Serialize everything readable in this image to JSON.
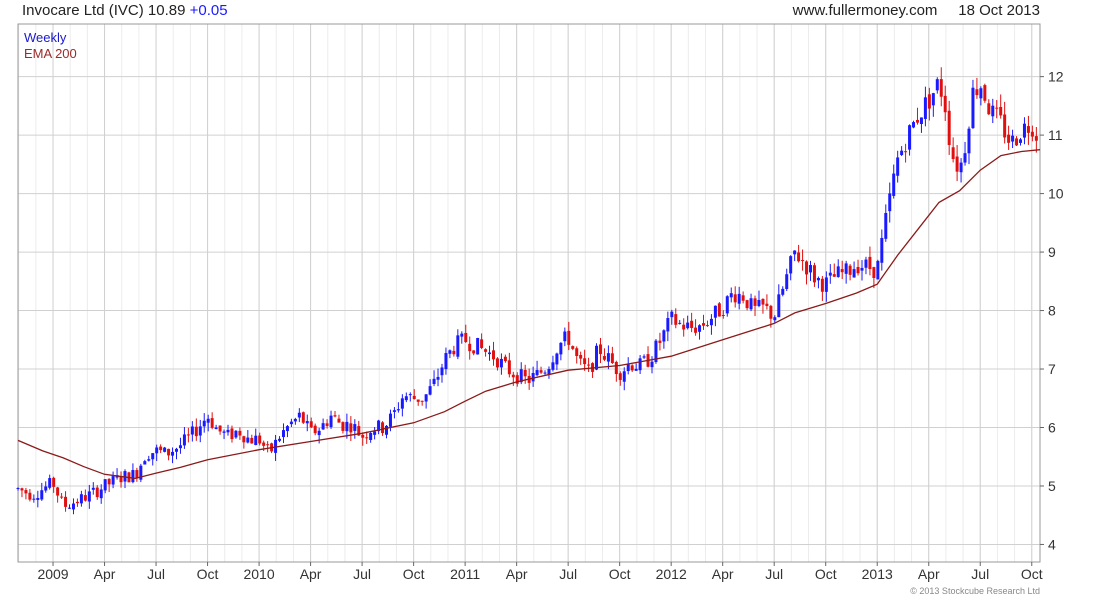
{
  "header": {
    "title": "Invocare Ltd (IVC)",
    "price": "10.89",
    "change": "+0.05",
    "site": "www.fullermoney.com",
    "date": "18 Oct 2013"
  },
  "legend": {
    "weekly": "Weekly",
    "ema": "EMA 200"
  },
  "copyright": "© 2013 Stockcube Research Ltd",
  "colors": {
    "up": "#1a1aff",
    "down": "#e01010",
    "ema": "#8b1a1a",
    "grid": "#d0d0d0"
  },
  "chart_data": {
    "type": "candlestick",
    "y_ticks": [
      4,
      5,
      6,
      7,
      8,
      9,
      10,
      11,
      12
    ],
    "ylim": [
      3.7,
      12.9
    ],
    "x_ticks": [
      {
        "label": "2009",
        "t": 0.0
      },
      {
        "label": "Apr",
        "t": 0.25
      },
      {
        "label": "Jul",
        "t": 0.5
      },
      {
        "label": "Oct",
        "t": 0.75
      },
      {
        "label": "2010",
        "t": 1.0
      },
      {
        "label": "Apr",
        "t": 1.25
      },
      {
        "label": "Jul",
        "t": 1.5
      },
      {
        "label": "Oct",
        "t": 1.75
      },
      {
        "label": "2011",
        "t": 2.0
      },
      {
        "label": "Apr",
        "t": 2.25
      },
      {
        "label": "Jul",
        "t": 2.5
      },
      {
        "label": "Oct",
        "t": 2.75
      },
      {
        "label": "2012",
        "t": 3.0
      },
      {
        "label": "Apr",
        "t": 3.25
      },
      {
        "label": "Jul",
        "t": 3.5
      },
      {
        "label": "Oct",
        "t": 3.75
      },
      {
        "label": "2013",
        "t": 4.0
      },
      {
        "label": "Apr",
        "t": 4.25
      },
      {
        "label": "Jul",
        "t": 4.5
      },
      {
        "label": "Oct",
        "t": 4.75
      }
    ],
    "xlim": [
      -0.17,
      4.79
    ],
    "price_path": [
      [
        -0.17,
        4.95
      ],
      [
        -0.1,
        4.85
      ],
      [
        -0.05,
        4.95
      ],
      [
        0.0,
        5.05
      ],
      [
        0.05,
        4.65
      ],
      [
        0.12,
        4.75
      ],
      [
        0.18,
        4.85
      ],
      [
        0.25,
        5.0
      ],
      [
        0.33,
        5.15
      ],
      [
        0.4,
        5.2
      ],
      [
        0.45,
        5.55
      ],
      [
        0.5,
        5.6
      ],
      [
        0.55,
        5.55
      ],
      [
        0.62,
        5.7
      ],
      [
        0.68,
        5.9
      ],
      [
        0.75,
        6.2
      ],
      [
        0.8,
        5.95
      ],
      [
        0.85,
        5.85
      ],
      [
        0.9,
        5.95
      ],
      [
        0.95,
        5.8
      ],
      [
        1.0,
        5.8
      ],
      [
        1.05,
        5.55
      ],
      [
        1.1,
        5.85
      ],
      [
        1.15,
        6.05
      ],
      [
        1.2,
        6.2
      ],
      [
        1.25,
        5.9
      ],
      [
        1.3,
        6.0
      ],
      [
        1.35,
        6.2
      ],
      [
        1.4,
        6.05
      ],
      [
        1.45,
        6.05
      ],
      [
        1.5,
        5.85
      ],
      [
        1.55,
        6.0
      ],
      [
        1.6,
        6.0
      ],
      [
        1.65,
        6.2
      ],
      [
        1.7,
        6.55
      ],
      [
        1.75,
        6.5
      ],
      [
        1.8,
        6.5
      ],
      [
        1.85,
        6.75
      ],
      [
        1.9,
        7.15
      ],
      [
        1.95,
        7.4
      ],
      [
        2.0,
        7.5
      ],
      [
        2.05,
        7.4
      ],
      [
        2.1,
        7.3
      ],
      [
        2.15,
        7.2
      ],
      [
        2.2,
        7.0
      ],
      [
        2.25,
        6.9
      ],
      [
        2.3,
        6.8
      ],
      [
        2.35,
        6.9
      ],
      [
        2.4,
        7.05
      ],
      [
        2.45,
        7.4
      ],
      [
        2.5,
        7.55
      ],
      [
        2.55,
        7.1
      ],
      [
        2.6,
        6.95
      ],
      [
        2.65,
        7.35
      ],
      [
        2.7,
        7.15
      ],
      [
        2.75,
        6.95
      ],
      [
        2.8,
        7.1
      ],
      [
        2.85,
        7.05
      ],
      [
        2.9,
        7.2
      ],
      [
        2.95,
        7.5
      ],
      [
        3.0,
        7.85
      ],
      [
        3.05,
        7.75
      ],
      [
        3.1,
        7.7
      ],
      [
        3.15,
        7.75
      ],
      [
        3.2,
        7.9
      ],
      [
        3.25,
        8.05
      ],
      [
        3.3,
        8.3
      ],
      [
        3.35,
        8.25
      ],
      [
        3.4,
        8.0
      ],
      [
        3.45,
        8.05
      ],
      [
        3.5,
        7.9
      ],
      [
        3.55,
        8.45
      ],
      [
        3.6,
        9.0
      ],
      [
        3.65,
        8.8
      ],
      [
        3.7,
        8.55
      ],
      [
        3.75,
        8.45
      ],
      [
        3.8,
        8.6
      ],
      [
        3.85,
        8.65
      ],
      [
        3.9,
        8.8
      ],
      [
        3.95,
        8.75
      ],
      [
        4.0,
        8.7
      ],
      [
        4.03,
        9.3
      ],
      [
        4.06,
        9.9
      ],
      [
        4.1,
        10.6
      ],
      [
        4.15,
        11.0
      ],
      [
        4.2,
        11.35
      ],
      [
        4.25,
        11.6
      ],
      [
        4.3,
        11.9
      ],
      [
        4.33,
        11.5
      ],
      [
        4.36,
        10.7
      ],
      [
        4.4,
        10.4
      ],
      [
        4.43,
        10.9
      ],
      [
        4.46,
        11.7
      ],
      [
        4.5,
        11.9
      ],
      [
        4.55,
        11.4
      ],
      [
        4.6,
        11.2
      ],
      [
        4.65,
        10.85
      ],
      [
        4.7,
        11.1
      ],
      [
        4.75,
        11.2
      ],
      [
        4.79,
        10.89
      ]
    ],
    "ema_path": [
      [
        -0.17,
        5.78
      ],
      [
        -0.05,
        5.6
      ],
      [
        0.05,
        5.48
      ],
      [
        0.15,
        5.33
      ],
      [
        0.25,
        5.2
      ],
      [
        0.4,
        5.13
      ],
      [
        0.5,
        5.22
      ],
      [
        0.62,
        5.32
      ],
      [
        0.75,
        5.45
      ],
      [
        1.0,
        5.62
      ],
      [
        1.25,
        5.76
      ],
      [
        1.5,
        5.9
      ],
      [
        1.75,
        6.08
      ],
      [
        1.9,
        6.27
      ],
      [
        2.0,
        6.45
      ],
      [
        2.1,
        6.62
      ],
      [
        2.25,
        6.78
      ],
      [
        2.5,
        6.98
      ],
      [
        2.75,
        7.06
      ],
      [
        3.0,
        7.22
      ],
      [
        3.25,
        7.5
      ],
      [
        3.5,
        7.78
      ],
      [
        3.6,
        7.96
      ],
      [
        3.75,
        8.12
      ],
      [
        3.9,
        8.3
      ],
      [
        4.0,
        8.45
      ],
      [
        4.1,
        8.95
      ],
      [
        4.2,
        9.4
      ],
      [
        4.3,
        9.85
      ],
      [
        4.4,
        10.05
      ],
      [
        4.5,
        10.4
      ],
      [
        4.6,
        10.65
      ],
      [
        4.7,
        10.72
      ],
      [
        4.79,
        10.75
      ]
    ]
  }
}
